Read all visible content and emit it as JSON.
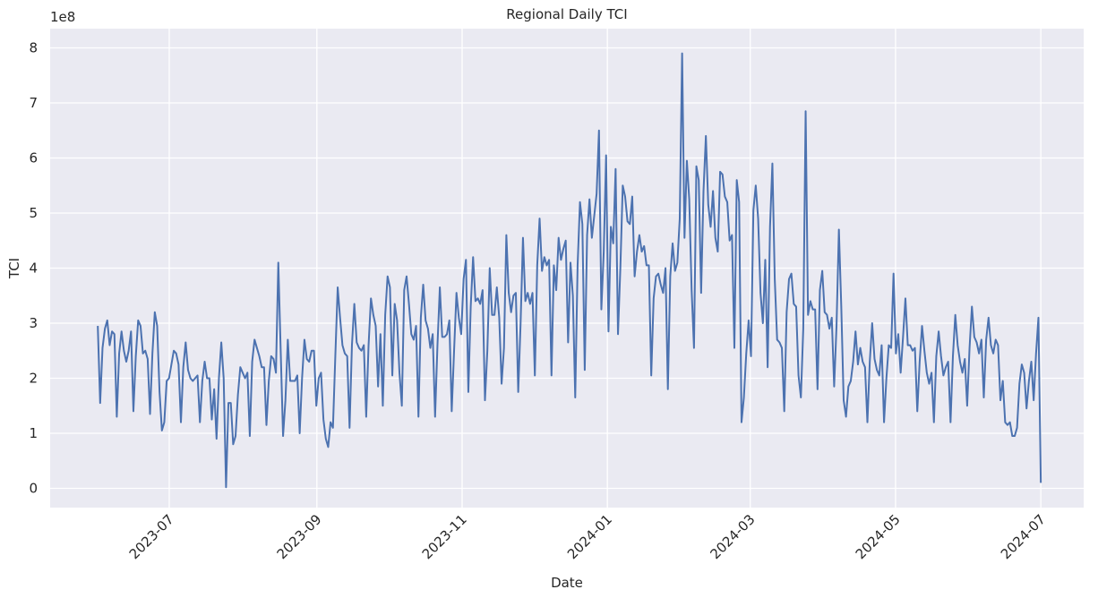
{
  "chart_data": {
    "type": "line",
    "title": "Regional Daily TCI",
    "xlabel": "Date",
    "ylabel": "TCI",
    "y_offset_text": "1e8",
    "ylim": [
      -0.35,
      8.35
    ],
    "y_unit_multiplier": 100000000,
    "yticks": [
      0,
      1,
      2,
      3,
      4,
      5,
      6,
      7,
      8
    ],
    "xlim": [
      "2023-05-12",
      "2024-07-19"
    ],
    "xticks": [
      "2023-07-01",
      "2023-09-01",
      "2023-11-01",
      "2024-01-01",
      "2024-03-01",
      "2024-05-01",
      "2024-07-01"
    ],
    "xtick_labels": [
      "2023-07",
      "2023-09",
      "2023-11",
      "2024-01",
      "2024-03",
      "2024-05",
      "2024-07"
    ],
    "grid": true,
    "line_color": "#4c72b0",
    "background_color": "#eaeaf2",
    "series": [
      {
        "x_start": "2023-06-01",
        "x_end": "2024-07-01",
        "x_step": "1 day",
        "values": [
          2.95,
          1.55,
          2.55,
          2.9,
          3.05,
          2.6,
          2.85,
          2.8,
          1.3,
          2.45,
          2.85,
          2.5,
          2.3,
          2.5,
          2.85,
          1.4,
          2.4,
          3.05,
          2.95,
          2.45,
          2.5,
          2.35,
          1.35,
          2.45,
          3.2,
          2.95,
          1.75,
          1.05,
          1.2,
          1.95,
          2.0,
          2.25,
          2.5,
          2.45,
          2.25,
          1.2,
          2.2,
          2.65,
          2.15,
          2.0,
          1.95,
          2.0,
          2.05,
          1.2,
          1.95,
          2.3,
          2.0,
          2.0,
          1.25,
          1.8,
          0.9,
          2.0,
          2.65,
          2.0,
          0.02,
          1.55,
          1.55,
          0.8,
          0.95,
          1.7,
          2.2,
          2.1,
          2.0,
          2.1,
          0.95,
          2.3,
          2.7,
          2.55,
          2.4,
          2.2,
          2.2,
          1.15,
          1.95,
          2.4,
          2.35,
          2.1,
          4.1,
          2.5,
          0.95,
          1.6,
          2.7,
          1.95,
          1.95,
          1.95,
          2.05,
          1.0,
          2.0,
          2.7,
          2.35,
          2.3,
          2.5,
          2.5,
          1.5,
          2.0,
          2.1,
          1.25,
          0.9,
          0.75,
          1.2,
          1.1,
          2.4,
          3.65,
          3.1,
          2.6,
          2.45,
          2.4,
          1.1,
          2.6,
          3.35,
          2.65,
          2.55,
          2.5,
          2.6,
          1.3,
          2.6,
          3.45,
          3.15,
          2.95,
          1.85,
          2.8,
          1.5,
          3.15,
          3.85,
          3.65,
          2.05,
          3.35,
          3.05,
          2.1,
          1.5,
          3.6,
          3.85,
          3.35,
          2.8,
          2.7,
          2.95,
          1.3,
          3.1,
          3.7,
          3.05,
          2.9,
          2.55,
          2.8,
          1.3,
          2.6,
          3.65,
          2.75,
          2.75,
          2.8,
          3.05,
          1.4,
          2.5,
          3.55,
          3.1,
          2.8,
          3.8,
          4.15,
          1.75,
          3.3,
          4.2,
          3.4,
          3.45,
          3.35,
          3.6,
          1.6,
          2.5,
          4.0,
          3.15,
          3.15,
          3.65,
          3.1,
          1.9,
          2.55,
          4.6,
          3.55,
          3.2,
          3.5,
          3.55,
          1.75,
          3.0,
          4.55,
          3.4,
          3.55,
          3.35,
          3.55,
          2.05,
          4.05,
          4.9,
          3.95,
          4.2,
          4.05,
          4.15,
          2.05,
          4.05,
          3.6,
          4.55,
          4.15,
          4.35,
          4.5,
          2.65,
          4.1,
          3.5,
          1.65,
          4.05,
          5.2,
          4.8,
          2.15,
          4.6,
          5.25,
          4.55,
          4.95,
          5.35,
          6.5,
          3.25,
          4.3,
          6.05,
          2.85,
          4.75,
          4.45,
          5.8,
          2.8,
          4.0,
          5.5,
          5.3,
          4.85,
          4.8,
          5.3,
          3.85,
          4.3,
          4.6,
          4.3,
          4.4,
          4.05,
          4.05,
          2.05,
          3.45,
          3.85,
          3.9,
          3.7,
          3.55,
          4.0,
          1.8,
          3.85,
          4.45,
          3.95,
          4.1,
          4.9,
          7.9,
          4.55,
          5.95,
          5.25,
          3.6,
          2.55,
          5.85,
          5.6,
          3.55,
          5.4,
          6.4,
          5.15,
          4.75,
          5.4,
          4.55,
          4.3,
          5.75,
          5.7,
          5.3,
          5.2,
          4.5,
          4.6,
          2.55,
          5.6,
          5.2,
          1.2,
          1.65,
          2.45,
          3.05,
          2.4,
          5.05,
          5.5,
          4.9,
          3.55,
          3.0,
          4.15,
          2.2,
          4.75,
          5.9,
          3.8,
          2.7,
          2.65,
          2.55,
          1.4,
          3.2,
          3.8,
          3.9,
          3.35,
          3.3,
          2.05,
          1.65,
          2.9,
          6.85,
          3.15,
          3.4,
          3.25,
          3.25,
          1.8,
          3.6,
          3.95,
          3.2,
          3.15,
          2.9,
          3.1,
          1.85,
          2.95,
          4.7,
          3.3,
          1.6,
          1.3,
          1.85,
          1.95,
          2.3,
          2.85,
          2.25,
          2.55,
          2.3,
          2.2,
          1.2,
          2.3,
          3.0,
          2.35,
          2.15,
          2.05,
          2.6,
          1.2,
          2.0,
          2.6,
          2.55,
          3.9,
          2.45,
          2.8,
          2.1,
          2.75,
          3.45,
          2.6,
          2.6,
          2.5,
          2.55,
          1.4,
          2.3,
          2.95,
          2.5,
          2.1,
          1.9,
          2.1,
          1.2,
          2.4,
          2.85,
          2.4,
          2.05,
          2.2,
          2.3,
          1.2,
          2.4,
          3.15,
          2.6,
          2.3,
          2.1,
          2.35,
          1.5,
          2.55,
          3.3,
          2.75,
          2.65,
          2.45,
          2.7,
          1.65,
          2.7,
          3.1,
          2.6,
          2.45,
          2.7,
          2.6,
          1.6,
          1.95,
          1.2,
          1.15,
          1.2,
          0.95,
          0.95,
          1.1,
          1.9,
          2.25,
          2.1,
          1.45,
          1.95,
          2.3,
          1.6,
          2.45,
          3.1,
          0.1
        ]
      }
    ]
  }
}
